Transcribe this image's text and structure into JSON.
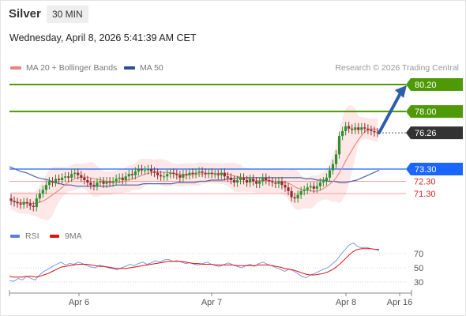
{
  "header": {
    "symbol": "Silver",
    "timeframe": "30 MIN",
    "datetime": "Wednesday, April 8, 2026 5:41:39 AM CET"
  },
  "legend": [
    {
      "label": "MA 20 + Bollinger Bands",
      "color": "#f08080"
    },
    {
      "label": "MA 50",
      "color": "#2c4f8f"
    }
  ],
  "copyright": "Research © 2026 Trading Central",
  "indicator_legend": [
    {
      "label": "RSI",
      "color": "#5b7fd4"
    },
    {
      "label": "9MA",
      "color": "#dd1111"
    }
  ],
  "colors": {
    "resistance": "#4e9a06",
    "current": "#333333",
    "pivot": "#1a66ff",
    "support": "#dd2222",
    "candle_up": "#2f8f2f",
    "candle_down": "#8f2f2f",
    "bollinger_fill": "#fde4e4",
    "arrow": "#2c5fa8"
  },
  "chart_data": [
    {
      "type": "candlestick",
      "title": "Silver",
      "x_ticks": [
        "Apr 6",
        "Apr 7",
        "Apr 8",
        "Apr 16"
      ],
      "levels": [
        {
          "value": 80.2,
          "label": "80.20",
          "kind": "resistance"
        },
        {
          "value": 78.0,
          "label": "78.00",
          "kind": "resistance"
        },
        {
          "value": 76.26,
          "label": "76.26",
          "kind": "current"
        },
        {
          "value": 73.3,
          "label": "73.30",
          "kind": "pivot"
        },
        {
          "value": 72.3,
          "label": "72.30",
          "kind": "support"
        },
        {
          "value": 71.3,
          "label": "71.30",
          "kind": "support"
        }
      ],
      "close_series": [
        70.7,
        70.6,
        70.5,
        70.4,
        70.6,
        70.5,
        70.3,
        70.2,
        70.9,
        71.3,
        71.6,
        72.0,
        72.3,
        72.2,
        72.5,
        72.4,
        72.6,
        72.7,
        72.6,
        72.9,
        73.0,
        72.8,
        72.6,
        72.4,
        72.2,
        72.0,
        71.9,
        72.2,
        72.3,
        72.1,
        72.3,
        72.2,
        72.3,
        72.5,
        72.6,
        72.4,
        72.7,
        72.9,
        72.8,
        73.1,
        73.3,
        73.2,
        73.2,
        73.3,
        73.1,
        73.0,
        72.8,
        72.7,
        72.7,
        72.9,
        73.0,
        72.9,
        72.8,
        72.6,
        72.9,
        72.8,
        73.0,
        72.9,
        73.0,
        73.1,
        73.0,
        72.9,
        73.0,
        72.9,
        72.9,
        72.8,
        73.0,
        72.7,
        72.6,
        72.4,
        72.2,
        72.4,
        72.6,
        72.4,
        72.2,
        72.5,
        72.3,
        72.1,
        72.3,
        72.6,
        72.4,
        72.3,
        72.2,
        72.1,
        72.3,
        72.0,
        71.8,
        71.5,
        71.0,
        70.9,
        71.2,
        71.5,
        71.6,
        71.8,
        71.9,
        71.7,
        71.9,
        72.2,
        72.3,
        72.6,
        73.2,
        73.7,
        74.5,
        76.0,
        76.4,
        76.8,
        76.6,
        76.5,
        76.7,
        76.5,
        76.7,
        76.6,
        76.5,
        76.4,
        76.3,
        76.26
      ],
      "ma50_series": [
        73.5,
        73.3,
        73.1,
        73.0,
        72.8,
        72.6,
        72.5,
        72.4,
        72.2,
        72.1,
        72.0,
        72.0,
        71.9,
        71.9,
        71.9,
        71.9,
        71.9,
        71.9,
        71.9,
        72.0,
        72.0,
        72.0,
        72.0,
        72.0,
        72.1,
        72.1,
        72.1,
        72.1,
        72.1,
        72.1,
        72.2,
        72.2,
        72.2,
        72.2,
        72.3,
        72.3,
        72.4,
        72.4,
        72.4,
        72.5,
        72.5,
        72.6,
        72.6,
        72.6,
        72.6,
        72.6,
        72.6,
        72.6,
        72.6,
        72.6,
        72.6,
        72.6,
        72.6,
        72.5,
        72.5,
        72.4,
        72.4,
        72.3,
        72.3,
        72.2,
        72.2,
        72.3,
        72.4,
        72.6,
        72.8,
        73.0,
        73.2
      ],
      "rsi_series": [
        32,
        31,
        35,
        33,
        38,
        35,
        33,
        40,
        45,
        48,
        52,
        55,
        58,
        54,
        56,
        55,
        58,
        56,
        53,
        51,
        50,
        54,
        52,
        50,
        49,
        47,
        50,
        52,
        55,
        53,
        56,
        58,
        55,
        57,
        60,
        58,
        61,
        62,
        59,
        60,
        58,
        56,
        57,
        55,
        54,
        56,
        58,
        55,
        53,
        52,
        55,
        57,
        54,
        52,
        50,
        53,
        55,
        52,
        56,
        58,
        55,
        53,
        50,
        48,
        45,
        48,
        46,
        42,
        38,
        36,
        40,
        42,
        45,
        48,
        50,
        55,
        60,
        68,
        75,
        82,
        85,
        80,
        78,
        79,
        77,
        76,
        74
      ],
      "rsi9_series": [
        38,
        37,
        37,
        37,
        38,
        38,
        37,
        38,
        40,
        42,
        45,
        48,
        51,
        52,
        53,
        54,
        55,
        55,
        55,
        54,
        53,
        52,
        52,
        51,
        50,
        49,
        49,
        49,
        50,
        51,
        52,
        53,
        54,
        55,
        56,
        57,
        58,
        59,
        59,
        59,
        59,
        58,
        57,
        56,
        56,
        55,
        55,
        55,
        54,
        54,
        54,
        54,
        54,
        53,
        53,
        53,
        53,
        53,
        54,
        54,
        54,
        53,
        52,
        51,
        49,
        48,
        47,
        45,
        43,
        41,
        40,
        40,
        41,
        42,
        44,
        47,
        51,
        56,
        62,
        68,
        73,
        76,
        77,
        77,
        77,
        76,
        76
      ],
      "rsi_ticks": [
        "70",
        "50",
        "30"
      ],
      "rsi_levels": [
        70,
        50,
        30
      ]
    }
  ]
}
